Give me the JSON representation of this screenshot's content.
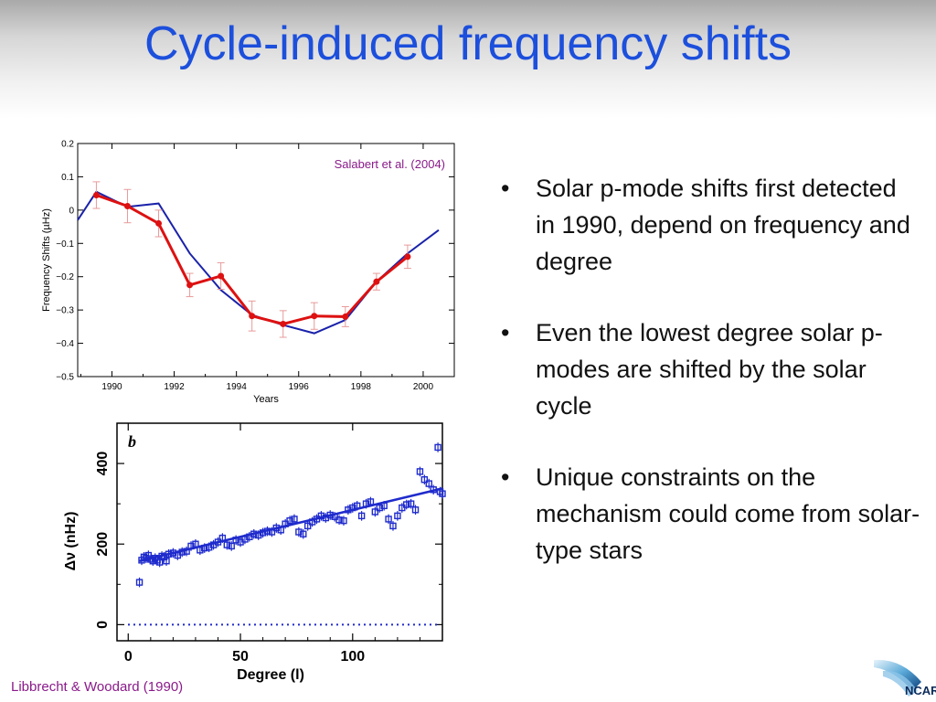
{
  "slide": {
    "title": "Cycle-induced frequency shifts",
    "bullets": [
      "Solar p-mode shifts first detected in 1990, depend on frequency and degree",
      "Even the lowest degree solar p-modes are shifted by the solar cycle",
      "Unique constraints on the mechanism could come from solar-type stars"
    ],
    "credit_bottom": "Libbrecht & Woodard (1990)",
    "logo_text": "NCAR"
  },
  "colors": {
    "title": "#1c4fdc",
    "data_red": "#dd1111",
    "model_blue": "#1a22aa",
    "errbar": "#e89a9a",
    "plot_b_blue": "#1f2bcc",
    "credit": "#8a1a8a"
  },
  "chart_data": [
    {
      "type": "line",
      "annotation": "Salabert et al. (2004)",
      "xlabel": "Years",
      "ylabel": "Frequency Shifts (µHz)",
      "xlim": [
        1988.9,
        2001.0
      ],
      "ylim": [
        -0.5,
        0.2
      ],
      "x_ticks": [
        1990,
        1992,
        1994,
        1996,
        1998,
        2000
      ],
      "y_ticks": [
        0.2,
        0.1,
        0,
        -0.1,
        -0.2,
        -0.3,
        -0.4,
        -0.5
      ],
      "y_tick_labels": [
        "0.2",
        "0.1",
        "0",
        "−0.1",
        "−0.2",
        "−0.3",
        "−0.4",
        "−0.5"
      ],
      "grid": false,
      "series": [
        {
          "kind": "observed",
          "x": [
            1989.5,
            1990.5,
            1991.5,
            1992.5,
            1993.5,
            1994.5,
            1995.5,
            1996.5,
            1997.5,
            1998.5,
            1999.5
          ],
          "y": [
            0.045,
            0.012,
            -0.04,
            -0.225,
            -0.198,
            -0.318,
            -0.342,
            -0.318,
            -0.32,
            -0.215,
            -0.14
          ],
          "err": [
            0.04,
            0.05,
            0.04,
            0.035,
            0.04,
            0.045,
            0.04,
            0.04,
            0.03,
            0.025,
            0.035
          ]
        },
        {
          "kind": "model",
          "x": [
            1988.9,
            1989.5,
            1990.5,
            1991.5,
            1992.5,
            1993.5,
            1994.5,
            1995.5,
            1996.5,
            1997.5,
            1998.5,
            1999.5,
            2000.5
          ],
          "y": [
            -0.03,
            0.055,
            0.01,
            0.02,
            -0.13,
            -0.24,
            -0.315,
            -0.345,
            -0.37,
            -0.33,
            -0.215,
            -0.13,
            -0.06
          ]
        }
      ]
    },
    {
      "type": "scatter",
      "panel_label": "b",
      "xlabel": "Degree (l)",
      "ylabel": "Δν (nHz)",
      "xlim": [
        -5,
        140
      ],
      "ylim": [
        -40,
        500
      ],
      "x_ticks": [
        0,
        50,
        100
      ],
      "y_ticks": [
        0,
        200,
        400
      ],
      "grid": false,
      "points": {
        "x": [
          5,
          6,
          7,
          8,
          9,
          10,
          11,
          12,
          13,
          14,
          15,
          16,
          17,
          18,
          20,
          22,
          24,
          26,
          28,
          30,
          32,
          34,
          36,
          38,
          40,
          42,
          44,
          46,
          48,
          50,
          52,
          54,
          56,
          58,
          60,
          62,
          64,
          66,
          68,
          70,
          72,
          74,
          76,
          78,
          80,
          82,
          84,
          86,
          88,
          90,
          92,
          94,
          96,
          98,
          100,
          102,
          104,
          106,
          108,
          110,
          112,
          114,
          116,
          118,
          120,
          122,
          124,
          126,
          128,
          130,
          132,
          134,
          136,
          138,
          139,
          140
        ],
        "y": [
          105,
          160,
          168,
          165,
          172,
          162,
          158,
          165,
          160,
          155,
          170,
          168,
          158,
          175,
          178,
          172,
          180,
          182,
          195,
          200,
          185,
          190,
          192,
          198,
          205,
          215,
          198,
          195,
          210,
          205,
          212,
          218,
          225,
          222,
          228,
          232,
          230,
          240,
          235,
          250,
          258,
          262,
          230,
          225,
          245,
          255,
          262,
          270,
          265,
          272,
          268,
          260,
          258,
          285,
          290,
          295,
          270,
          300,
          305,
          280,
          290,
          295,
          262,
          245,
          270,
          290,
          298,
          300,
          285,
          380,
          360,
          350,
          335,
          440,
          330,
          325
        ],
        "err": 12
      },
      "trend": {
        "x": [
          5,
          140
        ],
        "y": [
          158,
          338
        ]
      },
      "baseline": {
        "y": 0,
        "style": "dotted"
      }
    }
  ]
}
